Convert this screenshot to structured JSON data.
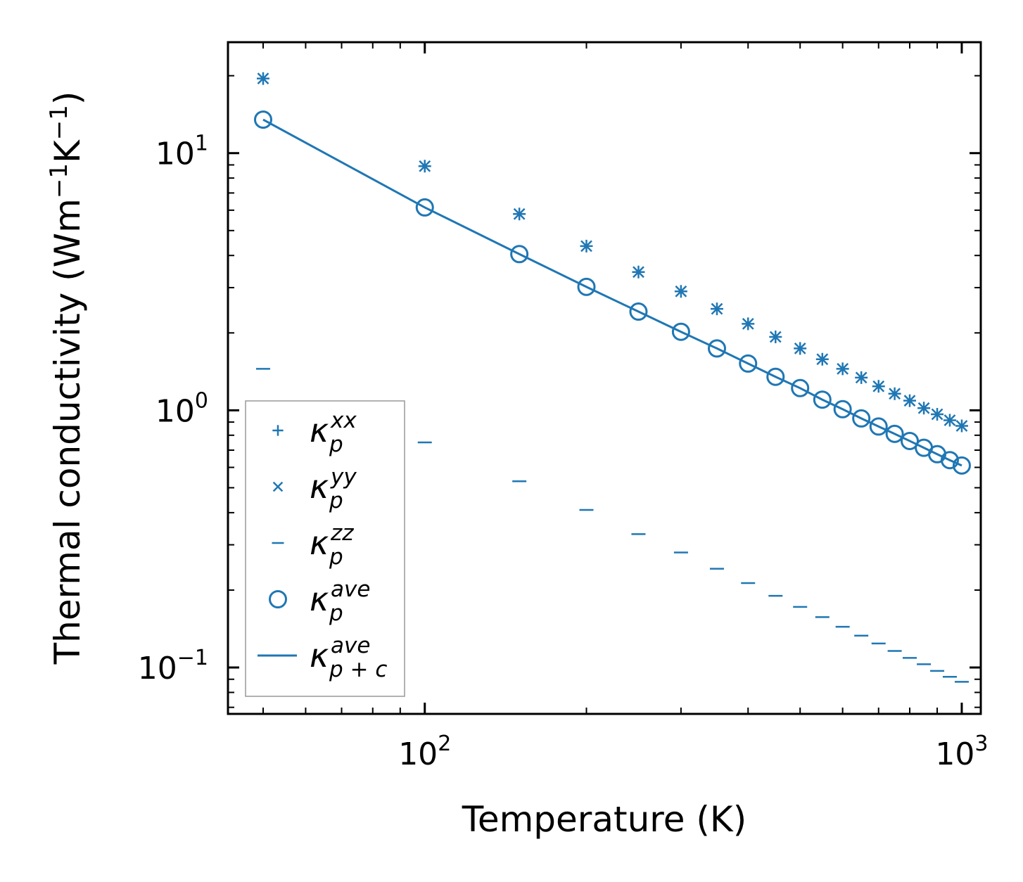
{
  "chart_data": {
    "type": "scatter",
    "xscale": "log",
    "yscale": "log",
    "xlabel": "Temperature (K)",
    "ylabel_main": "Thermal conductivity (Wm",
    "ylabel_exp": "−1",
    "ylabel_mid": "K",
    "ylabel_exp2": "−1",
    "ylabel_end": ")",
    "xlim": [
      43,
      1085
    ],
    "ylim": [
      0.066,
      27
    ],
    "color": "#1f77b4",
    "xticks": [
      {
        "value": 100,
        "base": "10",
        "exp": "2"
      },
      {
        "value": 1000,
        "base": "10",
        "exp": "3"
      }
    ],
    "yticks": [
      {
        "value": 0.1,
        "base": "10",
        "exp": "−1"
      },
      {
        "value": 1,
        "base": "10",
        "exp": "0"
      },
      {
        "value": 10,
        "base": "10",
        "exp": "1"
      }
    ],
    "x": [
      50,
      100,
      150,
      200,
      250,
      300,
      350,
      400,
      450,
      500,
      550,
      600,
      650,
      700,
      750,
      800,
      850,
      900,
      950,
      1000
    ],
    "series": [
      {
        "name": "kappa_p_xx",
        "marker": "plus",
        "values": [
          19.5,
          8.9,
          5.8,
          4.35,
          3.45,
          2.9,
          2.48,
          2.17,
          1.93,
          1.74,
          1.58,
          1.45,
          1.34,
          1.24,
          1.16,
          1.09,
          1.02,
          0.965,
          0.915,
          0.87
        ]
      },
      {
        "name": "kappa_p_yy",
        "marker": "x",
        "values": [
          19.5,
          8.9,
          5.8,
          4.35,
          3.45,
          2.9,
          2.48,
          2.17,
          1.93,
          1.74,
          1.58,
          1.45,
          1.34,
          1.24,
          1.16,
          1.09,
          1.02,
          0.965,
          0.915,
          0.87
        ]
      },
      {
        "name": "kappa_p_zz",
        "marker": "hline",
        "values": [
          1.45,
          0.75,
          0.53,
          0.41,
          0.33,
          0.28,
          0.242,
          0.213,
          0.19,
          0.172,
          0.157,
          0.144,
          0.133,
          0.124,
          0.116,
          0.109,
          0.103,
          0.097,
          0.092,
          0.088
        ]
      },
      {
        "name": "kappa_p_ave",
        "marker": "circle",
        "values": [
          13.5,
          6.15,
          4.05,
          3.02,
          2.42,
          2.02,
          1.74,
          1.52,
          1.35,
          1.22,
          1.1,
          1.01,
          0.93,
          0.865,
          0.81,
          0.76,
          0.715,
          0.675,
          0.64,
          0.61
        ]
      },
      {
        "name": "kappa_pc_ave",
        "marker": "line",
        "values": [
          13.5,
          6.15,
          4.05,
          3.02,
          2.42,
          2.02,
          1.74,
          1.52,
          1.35,
          1.22,
          1.1,
          1.01,
          0.93,
          0.865,
          0.81,
          0.76,
          0.715,
          0.675,
          0.64,
          0.61
        ]
      }
    ],
    "legend": {
      "position": "lower-left",
      "entries": [
        {
          "marker": "plus",
          "symbol": "κ",
          "sub": "p",
          "sup": "xx"
        },
        {
          "marker": "x",
          "symbol": "κ",
          "sub": "p",
          "sup": "yy"
        },
        {
          "marker": "hline",
          "symbol": "κ",
          "sub": "p",
          "sup": "zz"
        },
        {
          "marker": "circle",
          "symbol": "κ",
          "sub": "p",
          "sup": "ave"
        },
        {
          "marker": "line",
          "symbol": "κ",
          "sub": "p + c",
          "sup": "ave"
        }
      ]
    }
  }
}
